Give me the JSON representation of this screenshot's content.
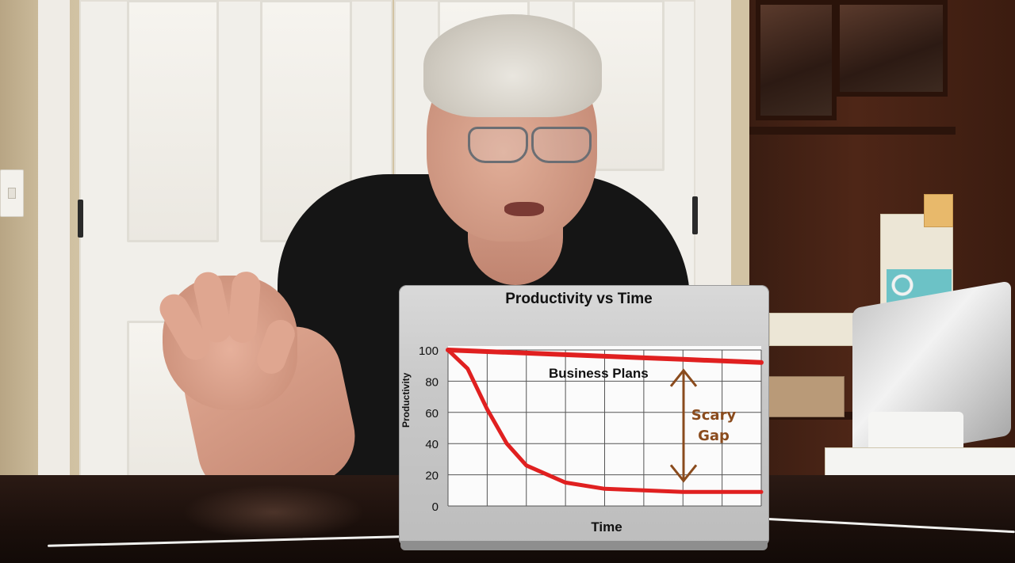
{
  "scene": {
    "description_tags": [
      "man-presenting",
      "laptop-lid-chart",
      "office-background"
    ]
  },
  "chart_data": {
    "type": "line",
    "title": "Productivity vs Time",
    "xlabel": "Time",
    "ylabel": "Productivity",
    "ylim": [
      0,
      100
    ],
    "yticks": [
      "0",
      "20",
      "40",
      "60",
      "80",
      "100"
    ],
    "grid": true,
    "series": [
      {
        "name": "Business Plans",
        "color": "#e02020",
        "x": [
          0,
          1,
          2,
          3,
          4,
          5,
          6,
          7,
          8
        ],
        "values": [
          100,
          99,
          98,
          97,
          96,
          95,
          94,
          93,
          92
        ]
      },
      {
        "name": "",
        "color": "#e02020",
        "x": [
          0,
          0.5,
          1,
          1.5,
          2,
          3,
          4,
          5,
          6,
          7,
          8
        ],
        "values": [
          100,
          88,
          62,
          40,
          26,
          15,
          11,
          10,
          9,
          9,
          9
        ]
      }
    ],
    "annotations": {
      "top_label": "Business Plans",
      "gap_label_line1": "Scary",
      "gap_label_line2": "Gap",
      "gap_color": "#8a4b1d"
    }
  }
}
